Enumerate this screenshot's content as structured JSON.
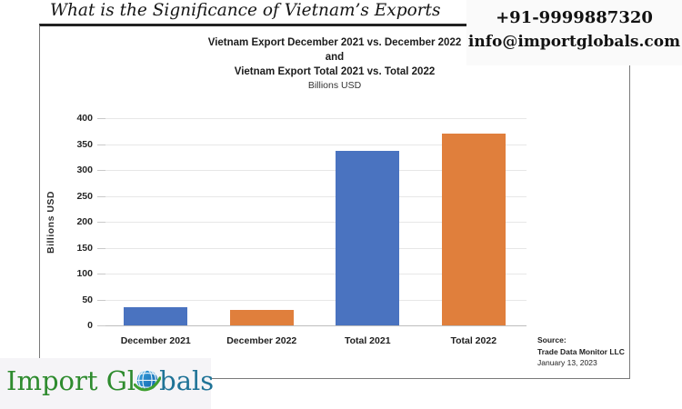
{
  "page": {
    "heading": "What is the Significance of Vietnam’s Exports"
  },
  "contact": {
    "phone": "+91-9999887320",
    "email": "info@importglobals.com"
  },
  "chart": {
    "title_line1": "Vietnam Export December 2021 vs. December 2022",
    "title_line2": "and",
    "title_line3": "Vietnam Export Total 2021 vs. Total 2022",
    "subtitle": "Billions USD",
    "y_axis_title": "Billions USD",
    "source": {
      "label": "Source:",
      "name": "Trade Data Monitor LLC",
      "date": "January 13, 2023"
    }
  },
  "chart_data": {
    "type": "bar",
    "title": "Vietnam Export December 2021 vs. December 2022 and Vietnam Export Total 2021 vs. Total 2022",
    "subtitle": "Billions USD",
    "categories": [
      "December 2021",
      "December 2022",
      "Total 2021",
      "Total 2022"
    ],
    "values": [
      35,
      29,
      336,
      371
    ],
    "bar_colors": [
      "#4A73C0",
      "#E07F3C",
      "#4A73C0",
      "#E07F3C"
    ],
    "xlabel": "",
    "ylabel": "Billions USD",
    "ylim": [
      0,
      400
    ],
    "yticks": [
      0,
      50,
      100,
      150,
      200,
      250,
      300,
      350,
      400
    ],
    "grid": true,
    "legend": false
  },
  "logo": {
    "text_before": "Import Gl",
    "text_after": "bals",
    "green_color": "#2E8B2E",
    "blue_color": "#1F7397"
  },
  "colors": {
    "bar_blue": "#4A73C0",
    "bar_orange": "#E07F3C",
    "gridline": "#e7e7e7",
    "contact_bg": "#fafafa",
    "logo_bg": "#f5f4f7"
  }
}
